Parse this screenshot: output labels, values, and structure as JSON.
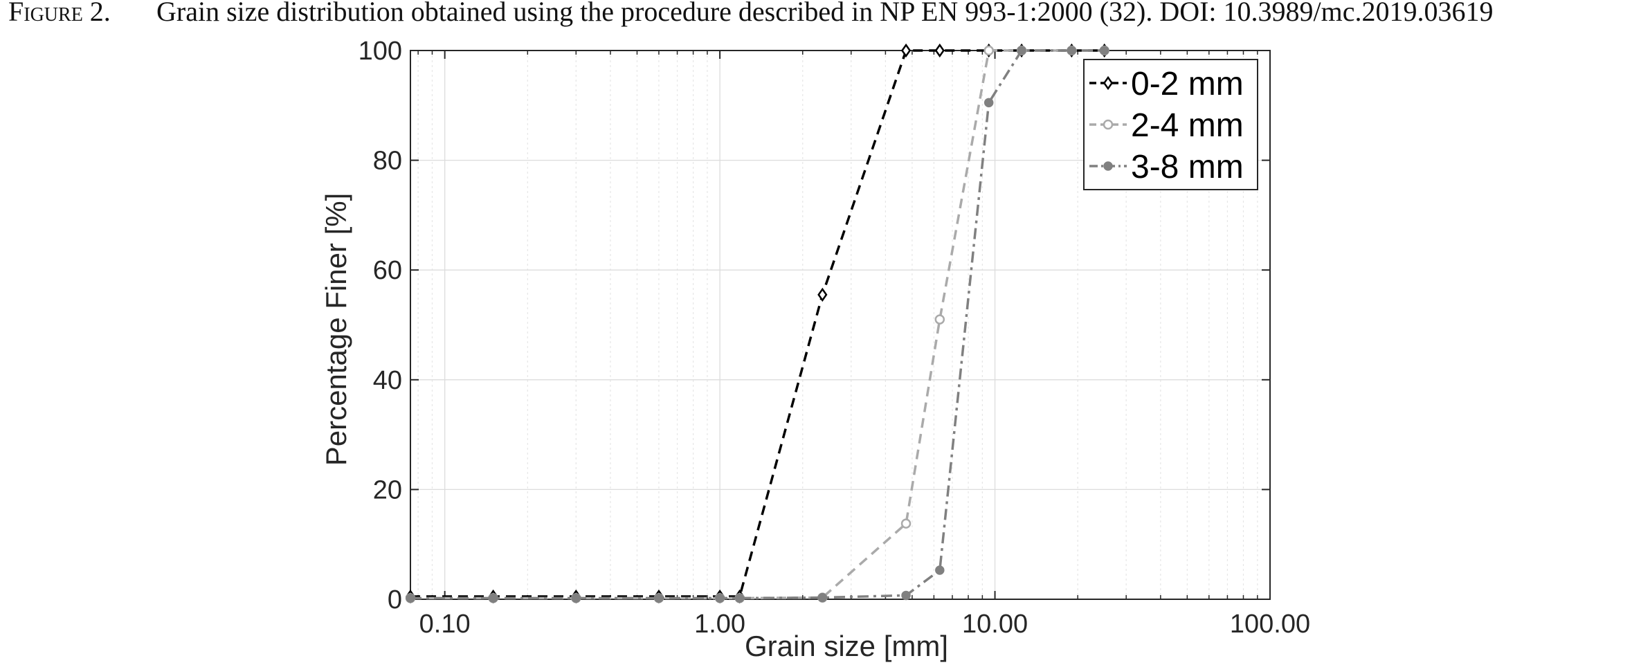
{
  "caption": {
    "label": "Figure 2.",
    "text": "Grain size distribution obtained using the procedure described in NP EN 993-1:2000 (32). DOI: 10.3989/mc.2019.03619"
  },
  "chart_data": {
    "type": "line",
    "xlabel": "Grain size  [mm]",
    "ylabel": "Percentage Finer [%]",
    "xscale": "log",
    "xlim": [
      0.075,
      100
    ],
    "ylim": [
      0,
      100
    ],
    "xticks": [
      0.1,
      1,
      10,
      100
    ],
    "xtick_labels": [
      "0.10",
      "1.00",
      "10.00",
      "100.00"
    ],
    "yticks": [
      0,
      20,
      40,
      60,
      80,
      100
    ],
    "ytick_labels": [
      "0",
      "20",
      "40",
      "60",
      "80",
      "100"
    ],
    "grid": true,
    "minor_grid": true,
    "legend_position": "top-right",
    "series": [
      {
        "name": "0-2 mm",
        "color": "#000000",
        "line_style": "dashed",
        "marker": "diamond",
        "x": [
          0.075,
          0.15,
          0.3,
          0.6,
          1.0,
          1.18,
          2.36,
          4.75,
          6.3,
          9.5,
          12.5,
          19,
          25
        ],
        "y": [
          0.5,
          0.5,
          0.5,
          0.5,
          0.5,
          0.5,
          55.5,
          100,
          100,
          100,
          100,
          100,
          100
        ]
      },
      {
        "name": "2-4 mm",
        "color": "#aaaaaa",
        "line_style": "dashed",
        "marker": "circle",
        "x": [
          0.075,
          0.15,
          0.3,
          0.6,
          1.0,
          1.18,
          2.36,
          4.75,
          6.3,
          9.5,
          12.5,
          19,
          25
        ],
        "y": [
          0.2,
          0.2,
          0.2,
          0.2,
          0.2,
          0.2,
          0.3,
          13.8,
          51,
          100,
          100,
          100,
          100
        ]
      },
      {
        "name": "3-8 mm",
        "color": "#808080",
        "line_style": "dashdot",
        "marker": "filled-circle",
        "x": [
          0.075,
          0.15,
          0.3,
          0.6,
          1.0,
          1.18,
          2.36,
          4.75,
          6.3,
          9.5,
          12.5,
          19,
          25
        ],
        "y": [
          0.2,
          0.2,
          0.2,
          0.2,
          0.2,
          0.2,
          0.3,
          0.7,
          5.3,
          90.5,
          100,
          100,
          100
        ]
      }
    ]
  }
}
